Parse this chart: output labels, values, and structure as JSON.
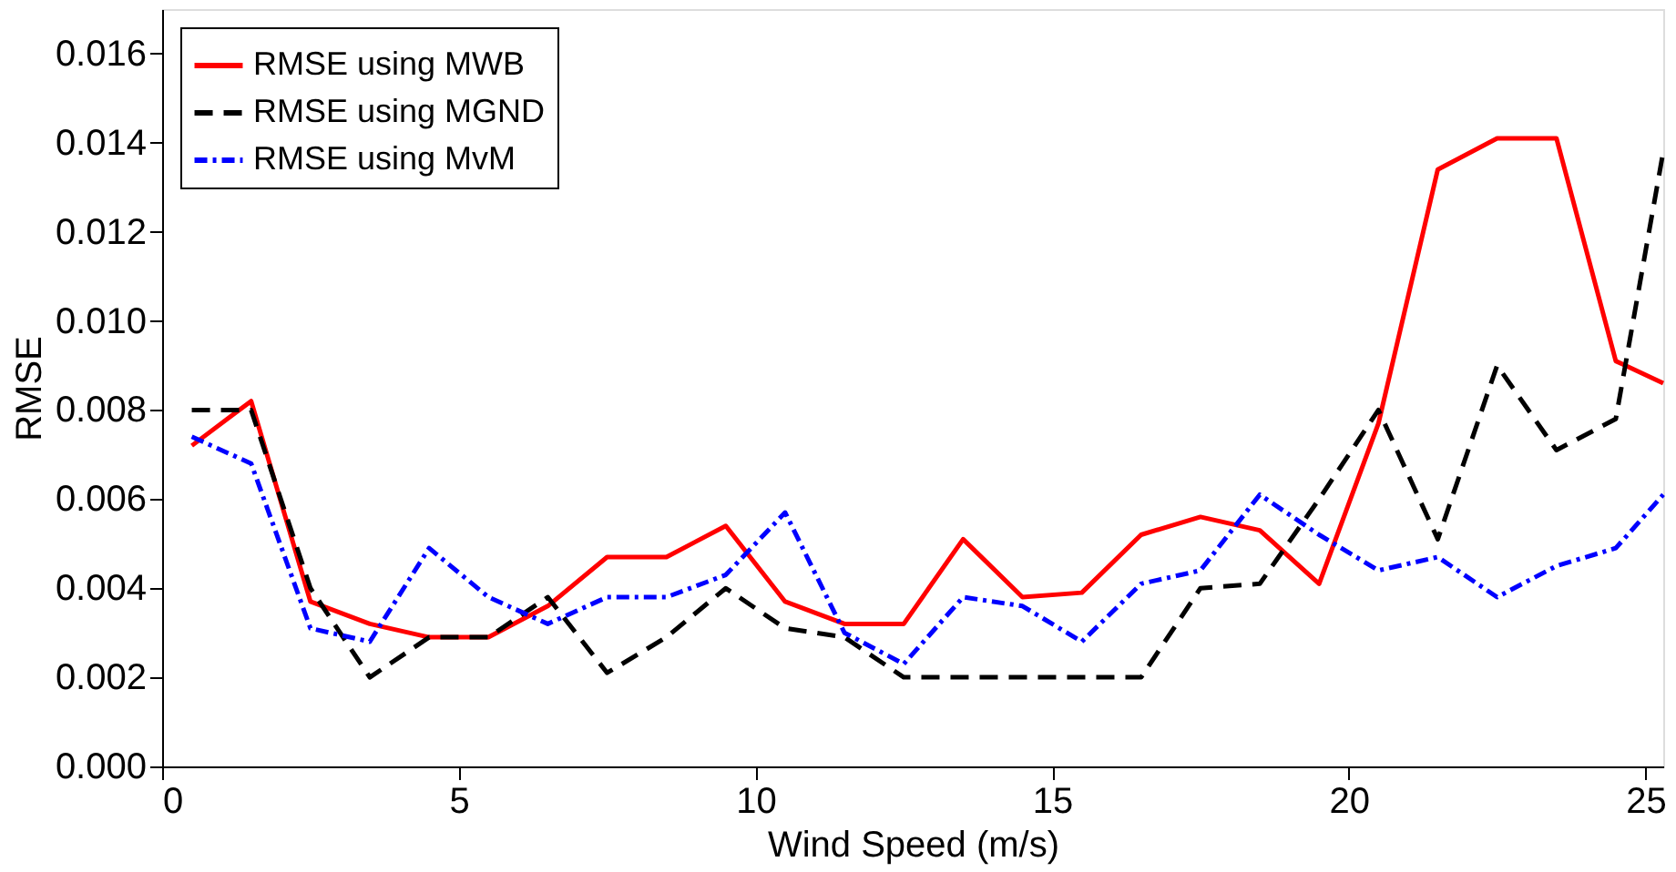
{
  "chart_data": {
    "type": "line",
    "xlabel": "Wind Speed (m/s)",
    "ylabel": "RMSE",
    "x": [
      0.5,
      1.5,
      2.5,
      3.5,
      4.5,
      5.5,
      6.5,
      7.5,
      8.5,
      9.5,
      10.5,
      11.5,
      12.5,
      13.5,
      14.5,
      15.5,
      16.5,
      17.5,
      18.5,
      19.5,
      20.5,
      21.5,
      22.5,
      23.5,
      24.5,
      25.3
    ],
    "series": [
      {
        "name": "RMSE using MWB",
        "color": "#ff0000",
        "line_style": "solid",
        "values": [
          0.0072,
          0.0082,
          0.0037,
          0.0032,
          0.0029,
          0.0029,
          0.0036,
          0.0047,
          0.0047,
          0.0054,
          0.0037,
          0.0032,
          0.0032,
          0.0051,
          0.0038,
          0.0039,
          0.0052,
          0.0056,
          0.0053,
          0.0041,
          0.0077,
          0.0134,
          0.0141,
          0.0141,
          0.0091,
          0.0086
        ]
      },
      {
        "name": "RMSE using MGND",
        "color": "#000000",
        "line_style": "dashed",
        "values": [
          0.008,
          0.008,
          0.004,
          0.002,
          0.0029,
          0.0029,
          0.0038,
          0.0021,
          0.0029,
          0.004,
          0.0031,
          0.0029,
          0.002,
          0.002,
          0.002,
          0.002,
          0.002,
          0.004,
          0.0041,
          0.006,
          0.008,
          0.0051,
          0.009,
          0.0071,
          0.0078,
          0.0138
        ]
      },
      {
        "name": "RMSE using MvM",
        "color": "#0000ff",
        "line_style": "dotted",
        "values": [
          0.0074,
          0.0068,
          0.0031,
          0.0028,
          0.0049,
          0.0038,
          0.0032,
          0.0038,
          0.0038,
          0.0043,
          0.0057,
          0.003,
          0.0023,
          0.0038,
          0.0036,
          0.0028,
          0.0041,
          0.0044,
          0.0061,
          0.0052,
          0.0044,
          0.0047,
          0.0038,
          0.0045,
          0.0049,
          0.0061
        ]
      }
    ],
    "xlim": [
      0,
      25.3
    ],
    "xticks": [
      0,
      5,
      10,
      15,
      20,
      25
    ],
    "ylim": [
      0,
      0.017
    ],
    "yticks": [
      {
        "value": 0,
        "label": "0.000"
      },
      {
        "value": 0.002,
        "label": "0.002"
      },
      {
        "value": 0.004,
        "label": "0.004"
      },
      {
        "value": 0.006,
        "label": "0.006"
      },
      {
        "value": 0.008,
        "label": "0.008"
      },
      {
        "value": 0.01,
        "label": "0.010"
      },
      {
        "value": 0.012,
        "label": "0.012"
      },
      {
        "value": 0.014,
        "label": "0.014"
      },
      {
        "value": 0.016,
        "label": "0.016"
      }
    ],
    "grid": false,
    "legend": "top left",
    "marker": "none"
  }
}
